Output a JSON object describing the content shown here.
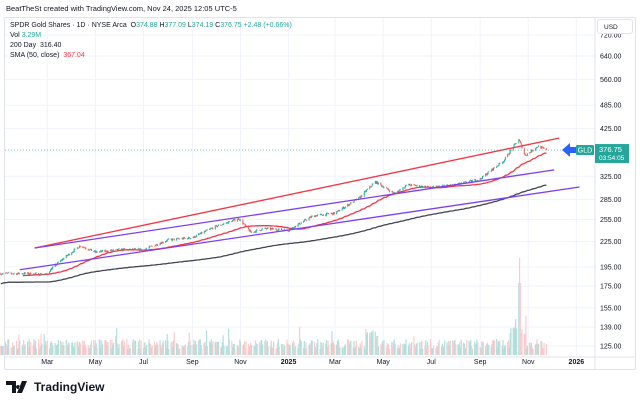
{
  "credit": "BeatTheSt created with TradingView.com, Nov 24, 2025 12:05 UTC-5",
  "legend": {
    "symbol": "SPDR Gold Shares · 1D · NYSE Arca",
    "o_label": "O",
    "o": "374.88",
    "h_label": "H",
    "h": "377.09",
    "l_label": "L",
    "l": "374.19",
    "c_label": "C",
    "c": "376.75",
    "change": "+2.48 (+0.66%)",
    "vol_label": "Vol",
    "vol": "3.29M",
    "ma200_label": "200 Day",
    "ma200": "316.40",
    "sma_label": "SMA (50, close)",
    "sma": "367.04"
  },
  "currency": "USD",
  "ticker_tag": "GLD",
  "last_price": "376.75",
  "countdown": "03:54:05",
  "logo_text": "TradingView",
  "colors": {
    "up": "#26a69a",
    "down": "#ef5350",
    "sma50": "#f23645",
    "ma200": "#434651",
    "channel": "#7e3ff2",
    "arrow": "#2962ff",
    "trend": "#f23645"
  },
  "chart_data": {
    "type": "candlestick",
    "scale": "log",
    "grid": true,
    "y_ticks": [
      720,
      640,
      560,
      485,
      425,
      325,
      285,
      255,
      225,
      195,
      175,
      155,
      139,
      125
    ],
    "y_tick_labels": [
      "720.00",
      "640.00",
      "560.00",
      "485.00",
      "425.00",
      "325.00",
      "285.00",
      "255.00",
      "225.00",
      "195.00",
      "175.00",
      "155.00",
      "139.00",
      "125.00"
    ],
    "x_ticks": [
      {
        "date": "2024-03-01",
        "label": "Mar"
      },
      {
        "date": "2024-05-01",
        "label": "May"
      },
      {
        "date": "2024-07-01",
        "label": "Jul"
      },
      {
        "date": "2024-09-01",
        "label": "Sep"
      },
      {
        "date": "2024-11-01",
        "label": "Nov"
      },
      {
        "date": "2025-01-01",
        "label": "2025"
      },
      {
        "date": "2025-03-01",
        "label": "Mar"
      },
      {
        "date": "2025-05-01",
        "label": "May"
      },
      {
        "date": "2025-07-01",
        "label": "Jul"
      },
      {
        "date": "2025-09-01",
        "label": "Sep"
      },
      {
        "date": "2025-11-01",
        "label": "Nov"
      },
      {
        "date": "2026-01-01",
        "label": "2026"
      }
    ],
    "approx_closes": [
      [
        "2024-01-02",
        188
      ],
      [
        "2024-02-01",
        188
      ],
      [
        "2024-02-28",
        187
      ],
      [
        "2024-03-15",
        200
      ],
      [
        "2024-04-12",
        220
      ],
      [
        "2024-05-01",
        212
      ],
      [
        "2024-06-01",
        215
      ],
      [
        "2024-07-01",
        215
      ],
      [
        "2024-08-01",
        227
      ],
      [
        "2024-09-01",
        230
      ],
      [
        "2024-10-01",
        245
      ],
      [
        "2024-10-30",
        256
      ],
      [
        "2024-11-14",
        237
      ],
      [
        "2024-12-01",
        242
      ],
      [
        "2025-01-01",
        240
      ],
      [
        "2025-02-01",
        260
      ],
      [
        "2025-03-01",
        264
      ],
      [
        "2025-04-01",
        288
      ],
      [
        "2025-04-21",
        315
      ],
      [
        "2025-05-15",
        295
      ],
      [
        "2025-06-01",
        310
      ],
      [
        "2025-07-01",
        305
      ],
      [
        "2025-08-01",
        310
      ],
      [
        "2025-09-01",
        320
      ],
      [
        "2025-10-01",
        355
      ],
      [
        "2025-10-20",
        400
      ],
      [
        "2025-10-28",
        365
      ],
      [
        "2025-11-13",
        385
      ],
      [
        "2025-11-24",
        376.75
      ]
    ],
    "trend_lines": [
      {
        "color": "trend",
        "from": [
          "2024-02-14",
          217
        ],
        "to": [
          "2025-12-10",
          403
        ]
      },
      {
        "color": "channel",
        "from": [
          "2024-02-14",
          217
        ],
        "to": [
          "2025-12-04",
          337
        ]
      },
      {
        "color": "channel",
        "from": [
          "2024-01-26",
          192
        ],
        "to": [
          "2026-01-05",
          306
        ]
      }
    ],
    "volume_peak_date": "2025-10-21"
  }
}
